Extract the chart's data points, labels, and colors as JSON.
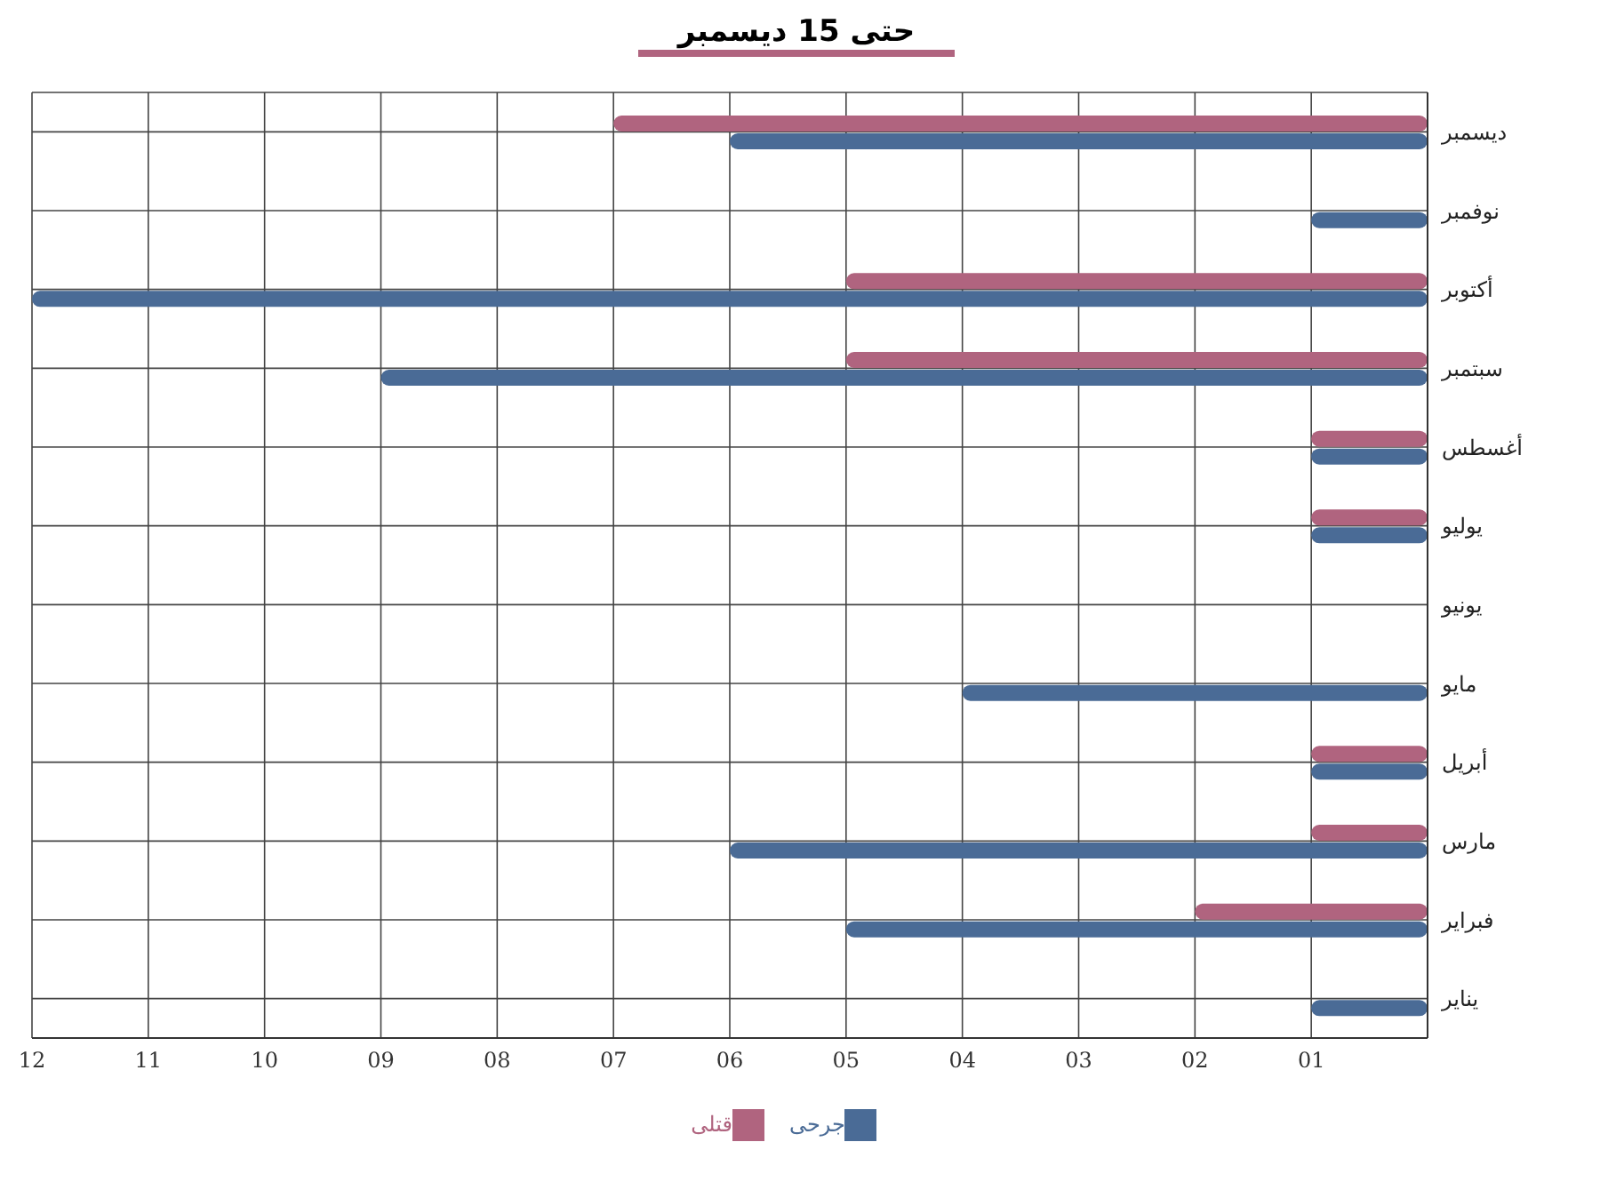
{
  "chart_data": {
    "type": "bar",
    "orientation": "horizontal",
    "title": "حتى 15 ديسمبر",
    "categories": [
      "ديسمبر",
      "نوفمبر",
      "أكتوبر",
      "سبتمبر",
      "أغسطس",
      "يوليو",
      "يونيو",
      "مايو",
      "أبريل",
      "مارس",
      "فبراير",
      "يناير"
    ],
    "series": [
      {
        "name": "قتلى",
        "color": "#b0647f",
        "values": [
          7,
          0,
          5,
          5,
          1,
          1,
          0,
          0,
          1,
          1,
          2,
          0
        ]
      },
      {
        "name": "جرحى",
        "color": "#4a6b96",
        "values": [
          6,
          1,
          12,
          9,
          1,
          1,
          0,
          4,
          1,
          6,
          5,
          1
        ]
      }
    ],
    "xlim": [
      12,
      0
    ],
    "xticks": [
      {
        "value": 12,
        "label": "12"
      },
      {
        "value": 11,
        "label": "11"
      },
      {
        "value": 10,
        "label": "10"
      },
      {
        "value": 9,
        "label": "09"
      },
      {
        "value": 8,
        "label": "08"
      },
      {
        "value": 7,
        "label": "07"
      },
      {
        "value": 6,
        "label": "06"
      },
      {
        "value": 5,
        "label": "05"
      },
      {
        "value": 4,
        "label": "04"
      },
      {
        "value": 3,
        "label": "03"
      },
      {
        "value": 2,
        "label": "02"
      },
      {
        "value": 1,
        "label": "01"
      }
    ],
    "grid": true,
    "legend": "bottom"
  }
}
